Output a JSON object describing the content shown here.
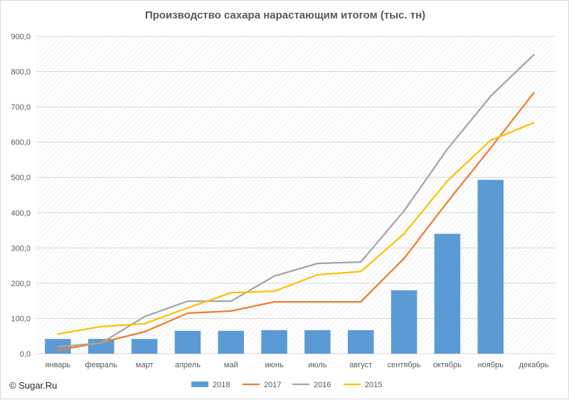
{
  "title": "Производство сахара нарастающим итогом (тыс. тн)",
  "watermark": "© Sugar.Ru",
  "colors": {
    "2018": "#5b9bd5",
    "2017": "#ed7d31",
    "2016": "#a5a5a5",
    "2015": "#ffc000"
  },
  "chart_data": {
    "type": "bar+line",
    "title": "Производство сахара нарастающим итогом (тыс. тн)",
    "categories": [
      "январь",
      "февраль",
      "март",
      "апрель",
      "май",
      "июнь",
      "июль",
      "август",
      "сентябрь",
      "октябрь",
      "ноябрь",
      "декабрь"
    ],
    "ylim": [
      0,
      900
    ],
    "yticks": [
      "0,0",
      "100,0",
      "200,0",
      "300,0",
      "400,0",
      "500,0",
      "600,0",
      "700,0",
      "800,0",
      "900,0"
    ],
    "grid": "horizontal",
    "plot_background": "diagonal-hatch",
    "legend_position": "bottom",
    "series": [
      {
        "name": "2018",
        "type": "bar",
        "values": [
          42,
          42,
          42,
          65,
          65,
          67,
          67,
          67,
          180,
          340,
          493,
          null
        ]
      },
      {
        "name": "2017",
        "type": "line",
        "values": [
          10,
          32,
          62,
          115,
          121,
          147,
          147,
          147,
          270,
          430,
          583,
          740
        ]
      },
      {
        "name": "2016",
        "type": "line",
        "values": [
          20,
          30,
          105,
          149,
          149,
          220,
          256,
          260,
          405,
          580,
          730,
          848
        ]
      },
      {
        "name": "2015",
        "type": "line",
        "values": [
          56,
          77,
          85,
          130,
          173,
          177,
          224,
          233,
          340,
          490,
          605,
          655
        ]
      }
    ]
  }
}
